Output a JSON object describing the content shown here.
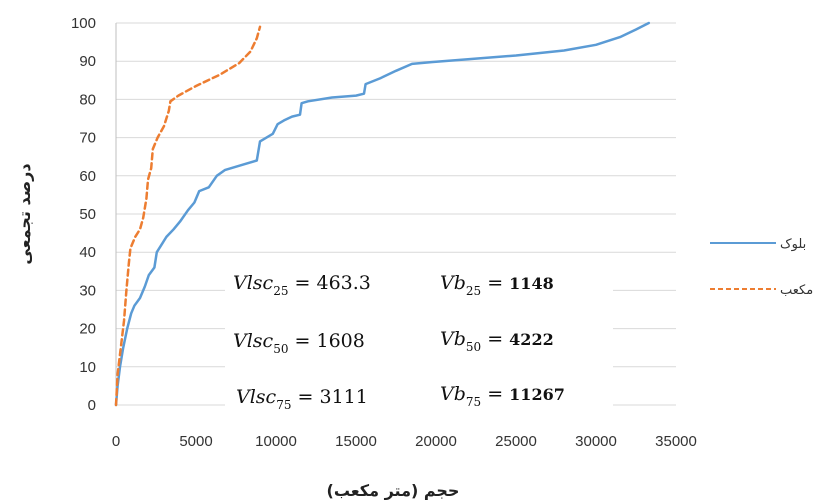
{
  "chart_data": {
    "type": "line",
    "xlabel": "حجم (متر مکعب)",
    "ylabel": "درصد تجمعی",
    "xlim": [
      0,
      35000
    ],
    "ylim": [
      0,
      100
    ],
    "xticks": [
      "0",
      "5000",
      "10000",
      "15000",
      "20000",
      "25000",
      "30000",
      "35000"
    ],
    "yticks": [
      "0",
      "10",
      "20",
      "30",
      "40",
      "50",
      "60",
      "70",
      "80",
      "90",
      "100"
    ],
    "grid": "horizontal",
    "legend_position": "right",
    "series": [
      {
        "name": "بلوک",
        "color": "#5b9bd5",
        "dash": "solid",
        "points": [
          [
            0,
            0
          ],
          [
            100,
            5
          ],
          [
            250,
            10
          ],
          [
            450,
            15
          ],
          [
            700,
            20
          ],
          [
            950,
            24
          ],
          [
            1150,
            26
          ],
          [
            1500,
            28
          ],
          [
            1800,
            31
          ],
          [
            2050,
            34
          ],
          [
            2400,
            36
          ],
          [
            2550,
            40
          ],
          [
            2850,
            42
          ],
          [
            3150,
            44
          ],
          [
            3600,
            46
          ],
          [
            4000,
            48
          ],
          [
            4500,
            51
          ],
          [
            4900,
            53
          ],
          [
            5200,
            56
          ],
          [
            5800,
            57
          ],
          [
            6300,
            60
          ],
          [
            6800,
            61.5
          ],
          [
            8000,
            63
          ],
          [
            8800,
            64
          ],
          [
            9000,
            69
          ],
          [
            9800,
            71
          ],
          [
            10100,
            73.5
          ],
          [
            10500,
            74.5
          ],
          [
            11000,
            75.5
          ],
          [
            11500,
            76
          ],
          [
            11600,
            79
          ],
          [
            12000,
            79.5
          ],
          [
            13500,
            80.5
          ],
          [
            15000,
            81
          ],
          [
            15500,
            81.5
          ],
          [
            15600,
            84
          ],
          [
            16500,
            85.5
          ],
          [
            17500,
            87.5
          ],
          [
            18500,
            89.3
          ],
          [
            19800,
            89.8
          ],
          [
            22000,
            90.5
          ],
          [
            25000,
            91.5
          ],
          [
            28000,
            92.8
          ],
          [
            30000,
            94.3
          ],
          [
            31500,
            96.3
          ],
          [
            32500,
            98.3
          ],
          [
            33300,
            100
          ]
        ]
      },
      {
        "name": "مکعب",
        "color": "#ed7d31",
        "dash": "dashed",
        "points": [
          [
            0,
            0
          ],
          [
            100,
            8
          ],
          [
            300,
            15
          ],
          [
            500,
            22
          ],
          [
            650,
            30
          ],
          [
            800,
            37
          ],
          [
            900,
            41
          ],
          [
            1200,
            44
          ],
          [
            1500,
            46
          ],
          [
            1700,
            49
          ],
          [
            1900,
            54
          ],
          [
            2000,
            59
          ],
          [
            2200,
            62
          ],
          [
            2300,
            67
          ],
          [
            2600,
            70
          ],
          [
            3000,
            73
          ],
          [
            3300,
            77
          ],
          [
            3400,
            79.5
          ],
          [
            3900,
            81
          ],
          [
            5000,
            83.5
          ],
          [
            6500,
            86.5
          ],
          [
            7700,
            89.5
          ],
          [
            8400,
            92.5
          ],
          [
            8800,
            96
          ],
          [
            9000,
            99
          ]
        ]
      }
    ],
    "annotations": [
      {
        "var": "Vlsc",
        "sub": "25",
        "value": "463.3"
      },
      {
        "var": "Vb",
        "sub": "25",
        "value": "1148"
      },
      {
        "var": "Vlsc",
        "sub": "50",
        "value": "1608"
      },
      {
        "var": "Vb",
        "sub": "50",
        "value": "4222"
      },
      {
        "var": "Vlsc",
        "sub": "75",
        "value": "3111"
      },
      {
        "var": "Vb",
        "sub": "75",
        "value": "11267"
      }
    ]
  }
}
